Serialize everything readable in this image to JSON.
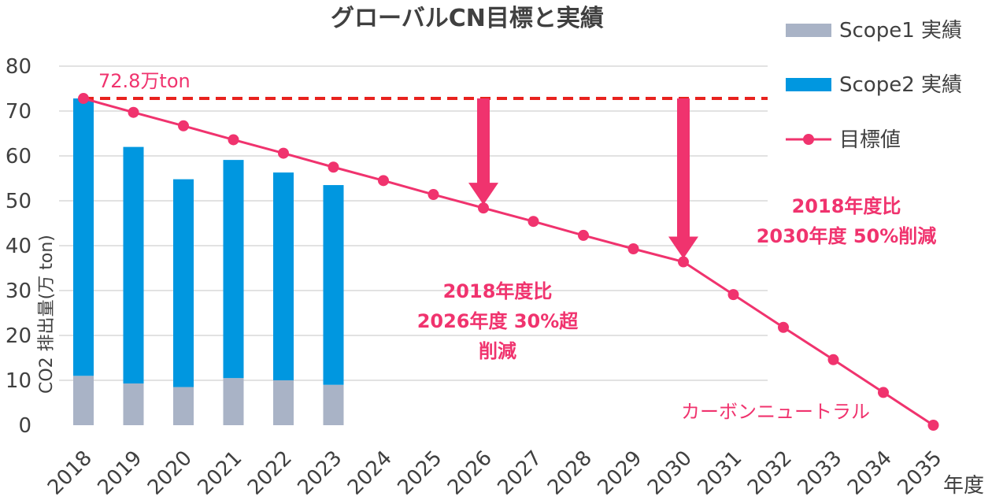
{
  "chart_data": {
    "type": "bar",
    "title": "グローバルCN目標と実績",
    "xlabel": "年度",
    "ylabel": "CO2 排出量(万 ton)",
    "ylim": [
      0,
      80
    ],
    "yticks": [
      0,
      10,
      20,
      30,
      40,
      50,
      60,
      70,
      80
    ],
    "grid": true,
    "legend_position": "top-right",
    "categories": [
      "2018",
      "2019",
      "2020",
      "2021",
      "2022",
      "2023",
      "2024",
      "2025",
      "2026",
      "2027",
      "2028",
      "2029",
      "2030",
      "2031",
      "2032",
      "2033",
      "2034",
      "2035"
    ],
    "series": [
      {
        "name": "Scope1 実績",
        "type": "bar",
        "stack": "actual",
        "color": "#a9b3c6",
        "values": [
          11,
          9.3,
          8.5,
          10.5,
          10,
          9,
          null,
          null,
          null,
          null,
          null,
          null,
          null,
          null,
          null,
          null,
          null,
          null
        ]
      },
      {
        "name": "Scope2 実績",
        "type": "bar",
        "stack": "actual",
        "color": "#0097e0",
        "values": [
          61.8,
          52.7,
          46.3,
          48.6,
          46.3,
          44.5,
          null,
          null,
          null,
          null,
          null,
          null,
          null,
          null,
          null,
          null,
          null,
          null
        ]
      },
      {
        "name": "目標値",
        "type": "line",
        "color": "#f0336e",
        "values": [
          72.8,
          69.7,
          66.7,
          63.6,
          60.6,
          57.5,
          54.5,
          51.4,
          48.4,
          45.4,
          42.3,
          39.3,
          36.4,
          29.1,
          21.8,
          14.6,
          7.3,
          0
        ]
      }
    ],
    "reference_line": {
      "value": 72.8,
      "label": "72.8万ton",
      "color": "#e8221e",
      "style": "dashed"
    },
    "arrows": [
      {
        "x": "2026",
        "from": 72.8,
        "to": 48.4
      },
      {
        "x": "2030",
        "from": 72.8,
        "to": 36.4
      }
    ],
    "annotations": {
      "a2026": [
        "2018年度比",
        "2026年度 30%超",
        "削減"
      ],
      "a2030": [
        "2018年度比",
        "2030年度 50%削減"
      ],
      "neutral": "カーボンニュートラル"
    }
  }
}
